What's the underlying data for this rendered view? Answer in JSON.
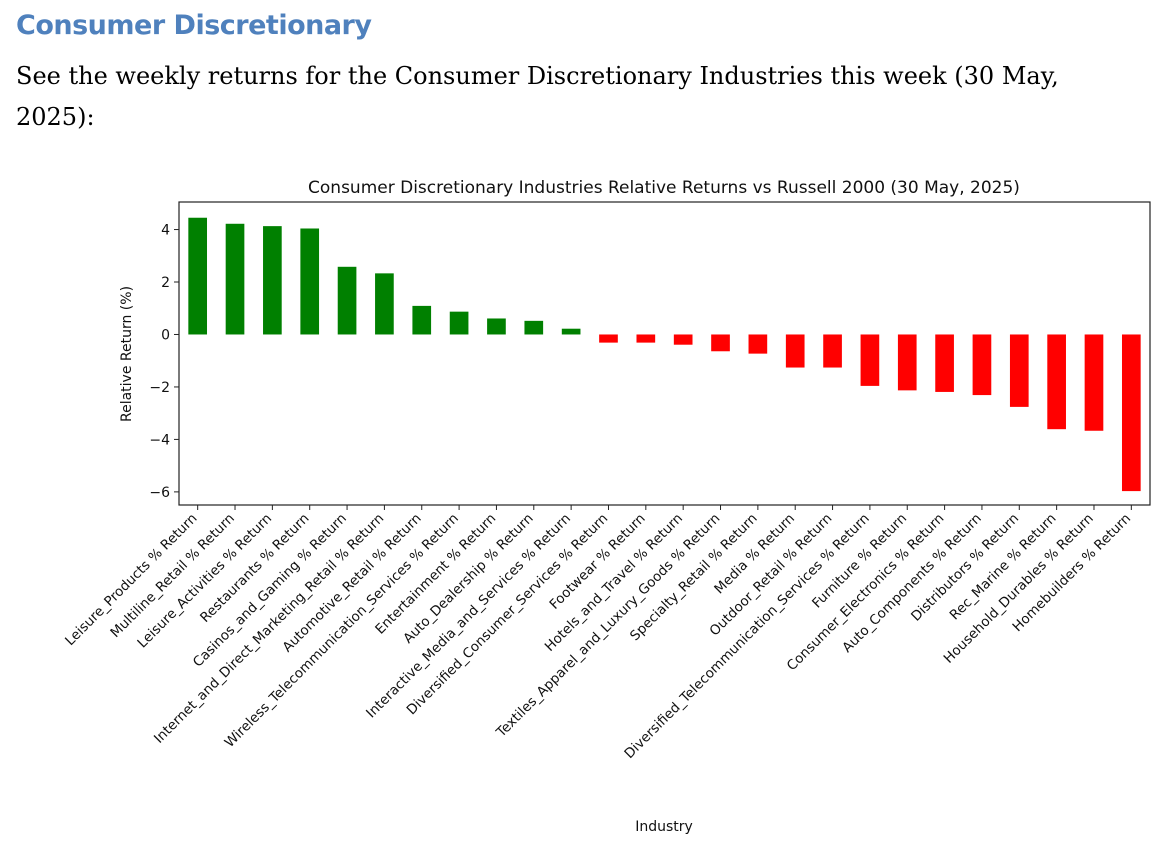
{
  "heading": "Consumer Discretionary",
  "intro": "See the weekly returns for the Consumer Discretionary Industries this week (30 May, 2025):",
  "colors": {
    "positive": "#008000",
    "negative": "#ff0000",
    "heading": "#4f81bd"
  },
  "chart_data": {
    "type": "bar",
    "title": "Consumer Discretionary Industries Relative Returns vs Russell 2000 (30 May, 2025)",
    "xlabel": "Industry",
    "ylabel": "Relative Return (%)",
    "ylim": [
      -6.5,
      5.05
    ],
    "yticks": [
      4,
      2,
      0,
      -2,
      -4,
      -6
    ],
    "ytick_labels": [
      "4",
      "2",
      "0",
      "−2",
      "−4",
      "−6"
    ],
    "grid": false,
    "categories": [
      "Leisure_Products % Return",
      "Multiline_Retail % Return",
      "Leisure_Activities % Return",
      "Restaurants % Return",
      "Casinos_and_Gaming % Return",
      "Internet_and_Direct_Marketing_Retail % Return",
      "Automotive_Retail % Return",
      "Wireless_Telecommunication_Services % Return",
      "Entertainment % Return",
      "Auto_Dealership % Return",
      "Interactive_Media_and_Services % Return",
      "Diversified_Consumer_Services % Return",
      "Footwear % Return",
      "Hotels_and_Travel % Return",
      "Textiles_Apparel_and_Luxury_Goods % Return",
      "Specialty_Retail % Return",
      "Media % Return",
      "Outdoor_Retail % Return",
      "Diversified_Telecommunication_Services % Return",
      "Furniture % Return",
      "Consumer_Electronics % Return",
      "Auto_Components % Return",
      "Distributors % Return",
      "Rec_Marine % Return",
      "Household_Durables % Return",
      "Homebuilders % Return"
    ],
    "values": [
      4.45,
      4.22,
      4.13,
      4.04,
      2.58,
      2.33,
      1.09,
      0.87,
      0.61,
      0.52,
      0.22,
      -0.31,
      -0.31,
      -0.39,
      -0.64,
      -0.73,
      -1.26,
      -1.26,
      -1.96,
      -2.13,
      -2.19,
      -2.31,
      -2.76,
      -3.61,
      -3.67,
      -5.97
    ]
  }
}
